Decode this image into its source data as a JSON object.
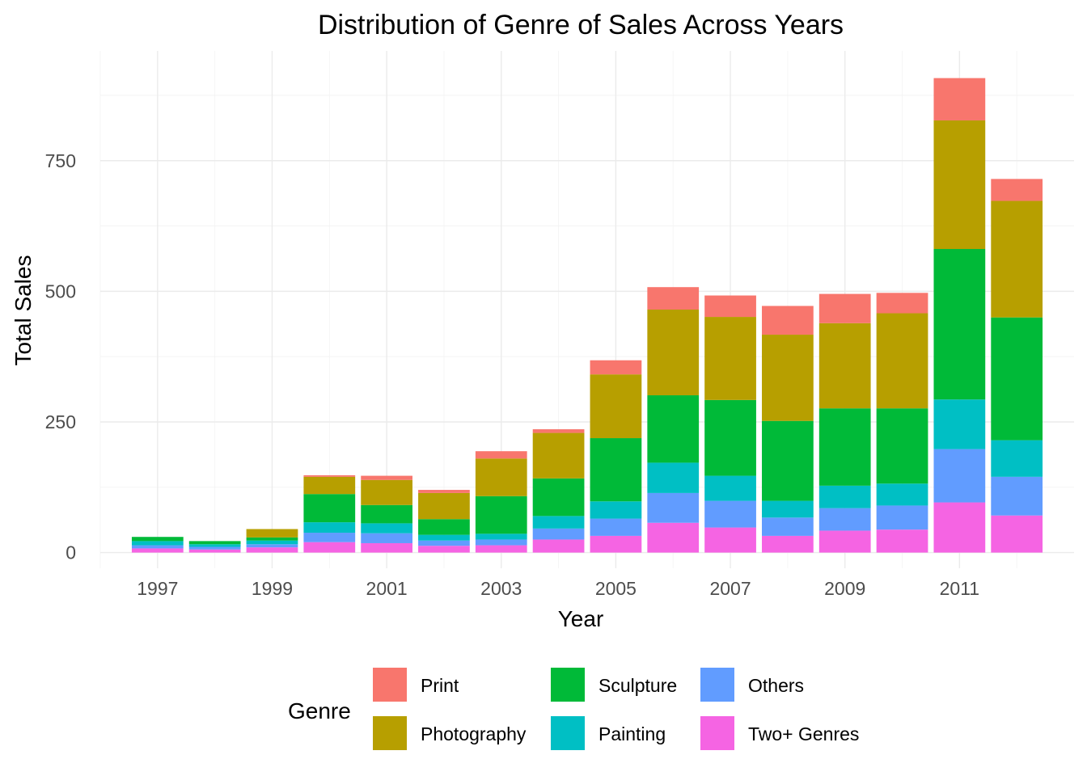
{
  "chart_data": {
    "type": "bar",
    "stacked": true,
    "title": "Distribution of Genre of Sales Across Years",
    "xlabel": "Year",
    "ylabel": "Total Sales",
    "x": [
      1997,
      1998,
      1999,
      2000,
      2001,
      2002,
      2003,
      2004,
      2005,
      2006,
      2007,
      2008,
      2009,
      2010,
      2011,
      2012
    ],
    "x_tick_labels": [
      "1997",
      "1999",
      "2001",
      "2003",
      "2005",
      "2007",
      "2009",
      "2011"
    ],
    "x_tick_values": [
      1997,
      1999,
      2001,
      2003,
      2005,
      2007,
      2009,
      2011
    ],
    "xlim": [
      1996,
      2013
    ],
    "ylim": [
      -30,
      960
    ],
    "y_tick_values": [
      0,
      250,
      500,
      750
    ],
    "y_tick_labels": [
      "0",
      "250",
      "500",
      "750"
    ],
    "grid": true,
    "legend": {
      "title": "Genre",
      "placement": "bottom"
    },
    "series": [
      {
        "name": "Two+ Genres",
        "color": "#F564E3",
        "values": [
          8,
          6,
          10,
          20,
          18,
          13,
          14,
          25,
          32,
          57,
          48,
          32,
          42,
          44,
          96,
          71
        ]
      },
      {
        "name": "Others",
        "color": "#619CFF",
        "values": [
          6,
          5,
          6,
          18,
          19,
          10,
          11,
          21,
          33,
          57,
          51,
          35,
          43,
          46,
          102,
          74
        ]
      },
      {
        "name": "Painting",
        "color": "#00BFC4",
        "values": [
          8,
          5,
          7,
          20,
          19,
          11,
          11,
          24,
          33,
          58,
          48,
          32,
          43,
          42,
          95,
          70
        ]
      },
      {
        "name": "Sculpture",
        "color": "#00BA38",
        "values": [
          8,
          6,
          6,
          54,
          35,
          30,
          72,
          72,
          121,
          129,
          145,
          153,
          148,
          144,
          288,
          235
        ]
      },
      {
        "name": "Photography",
        "color": "#B79F00",
        "values": [
          0,
          0,
          16,
          33,
          48,
          50,
          72,
          87,
          122,
          164,
          159,
          165,
          163,
          182,
          246,
          223
        ]
      },
      {
        "name": "Print",
        "color": "#F8766D",
        "values": [
          0,
          0,
          0,
          3,
          8,
          6,
          14,
          7,
          27,
          43,
          41,
          55,
          56,
          39,
          81,
          42
        ]
      }
    ],
    "legend_order": [
      "Print",
      "Photography",
      "Sculpture",
      "Painting",
      "Others",
      "Two+ Genres"
    ]
  }
}
